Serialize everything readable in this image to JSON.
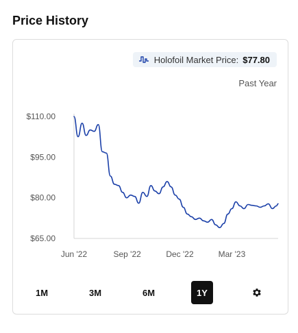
{
  "page": {
    "title": "Price History"
  },
  "price_pill": {
    "icon": "price-line-icon",
    "label": "Holofoil Market Price:",
    "value": "$77.80"
  },
  "range_label": "Past Year",
  "range_buttons": [
    {
      "label": "1M",
      "active": false
    },
    {
      "label": "3M",
      "active": false
    },
    {
      "label": "6M",
      "active": false
    },
    {
      "label": "1Y",
      "active": true
    }
  ],
  "settings_icon": "gear-icon",
  "colors": {
    "line": "#1a3fa8",
    "active_button": "#111111",
    "pill_bg": "#eef3f8"
  },
  "chart_data": {
    "type": "line",
    "title": "",
    "xlabel": "",
    "ylabel": "",
    "y_ticks": [
      110,
      95,
      80,
      65
    ],
    "y_tick_labels": [
      "$110.00",
      "$95.00",
      "$80.00",
      "$65.00"
    ],
    "ylim": [
      65,
      111
    ],
    "x_tick_labels": [
      "Jun '22",
      "Sep '22",
      "Dec '22",
      "Mar '23"
    ],
    "x_tick_dates": [
      "2022-06-01",
      "2022-09-01",
      "2022-12-01",
      "2023-03-01"
    ],
    "xlim": [
      "2022-06-01",
      "2023-05-20"
    ],
    "grid": false,
    "series": [
      {
        "x": [
          "2022-06-01",
          "2022-06-08",
          "2022-06-15",
          "2022-06-22",
          "2022-06-29",
          "2022-07-06",
          "2022-07-13",
          "2022-07-20",
          "2022-07-27",
          "2022-08-03",
          "2022-08-10",
          "2022-08-17",
          "2022-08-24",
          "2022-08-31",
          "2022-09-07",
          "2022-09-14",
          "2022-09-21",
          "2022-09-28",
          "2022-10-05",
          "2022-10-12",
          "2022-10-19",
          "2022-10-26",
          "2022-11-02",
          "2022-11-09",
          "2022-11-16",
          "2022-11-23",
          "2022-11-30",
          "2022-12-07",
          "2022-12-14",
          "2022-12-21",
          "2022-12-28",
          "2023-01-04",
          "2023-01-11",
          "2023-01-18",
          "2023-01-25",
          "2023-02-01",
          "2023-02-08",
          "2023-02-15",
          "2023-02-22",
          "2023-03-01",
          "2023-03-08",
          "2023-03-15",
          "2023-03-22",
          "2023-03-29",
          "2023-04-05",
          "2023-04-12",
          "2023-04-19",
          "2023-04-26",
          "2023-05-03",
          "2023-05-10",
          "2023-05-17",
          "2023-05-20"
        ],
        "values": [
          110,
          102.5,
          107.5,
          103,
          105,
          104.5,
          107,
          97,
          96.5,
          88,
          85,
          84.5,
          82,
          80,
          81,
          80.5,
          78,
          82,
          80.5,
          84.5,
          82.5,
          81.5,
          84,
          86,
          84,
          81,
          79.5,
          76.5,
          74,
          73,
          72,
          72.5,
          71.5,
          71,
          72,
          70,
          69,
          70.5,
          74,
          76,
          78.5,
          77,
          76,
          77.5,
          77.2,
          77,
          76.5,
          77,
          77.8,
          76,
          77,
          77.8
        ]
      }
    ]
  }
}
